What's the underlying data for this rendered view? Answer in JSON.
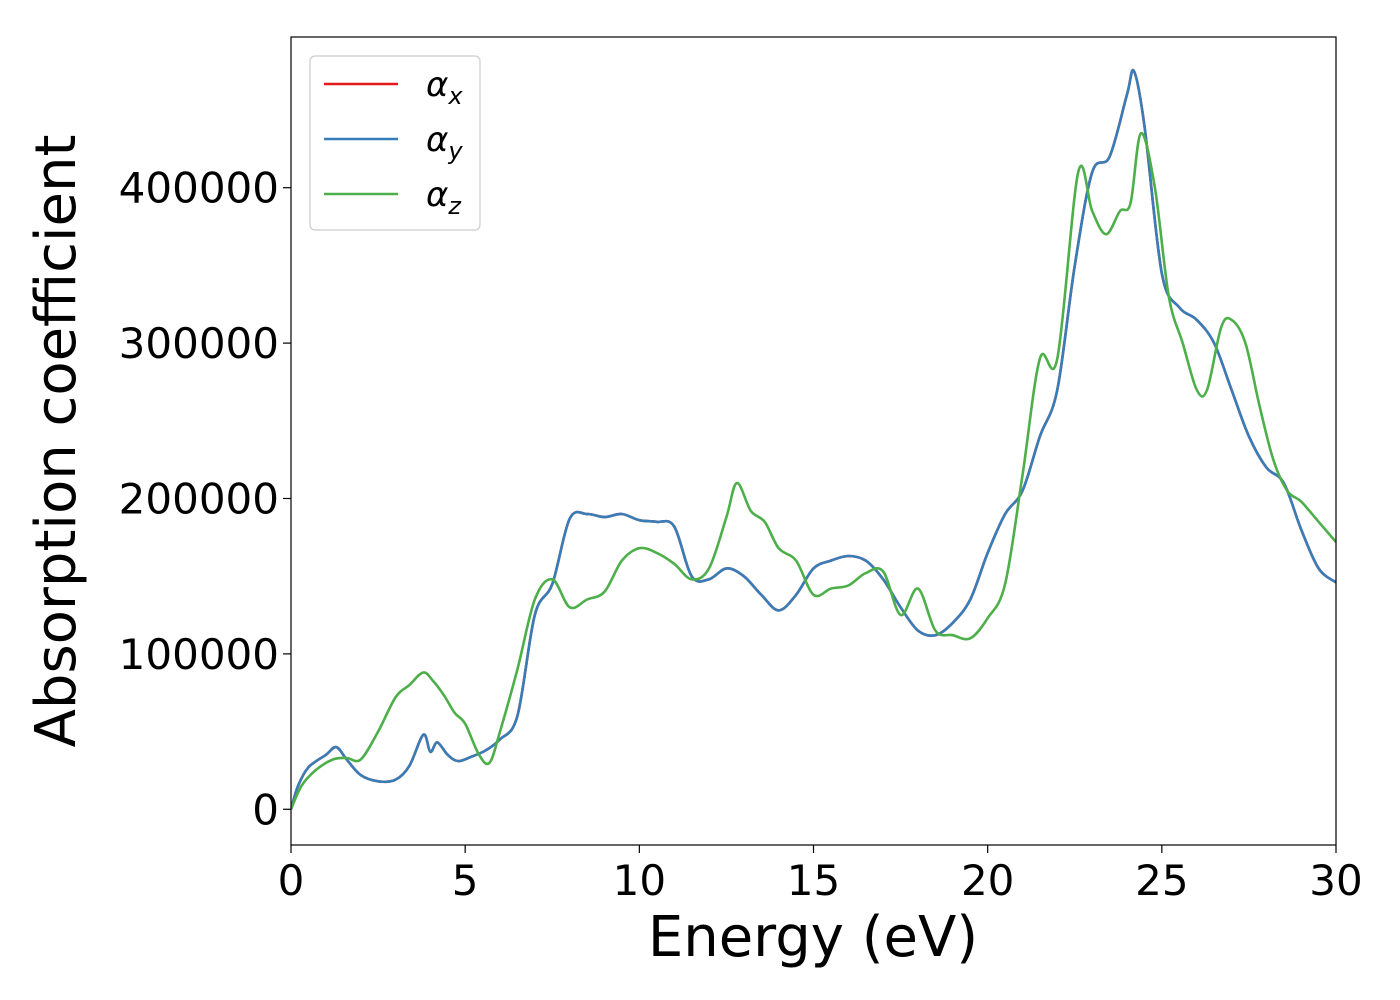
{
  "chart_data": {
    "type": "line",
    "xlabel": "Energy (eV)",
    "ylabel": "Absorption coefficient",
    "xlim": [
      0,
      30
    ],
    "ylim": [
      -23000,
      497000
    ],
    "xticks": [
      0,
      5,
      10,
      15,
      20,
      25,
      30
    ],
    "xtick_labels": [
      "0",
      "5",
      "10",
      "15",
      "20",
      "25",
      "30"
    ],
    "yticks": [
      0,
      100000,
      200000,
      300000,
      400000
    ],
    "ytick_labels": [
      "0",
      "100000",
      "200000",
      "300000",
      "400000"
    ],
    "grid": false,
    "legend_position": "top-left",
    "series": [
      {
        "name": "α_x",
        "symbol": "α",
        "subscript": "x",
        "color": "#e41a1c",
        "x": [
          0,
          0.2,
          0.5,
          1.0,
          1.3,
          1.6,
          2.0,
          2.5,
          3.0,
          3.4,
          3.8,
          4.0,
          4.2,
          4.5,
          4.8,
          5.2,
          5.6,
          6.0,
          6.5,
          7.0,
          7.5,
          8.0,
          8.5,
          9.0,
          9.5,
          10.0,
          10.5,
          11.0,
          11.5,
          12.0,
          12.5,
          13.0,
          13.5,
          14.0,
          14.5,
          15.0,
          15.5,
          16.0,
          16.5,
          17.0,
          17.5,
          18.0,
          18.5,
          19.0,
          19.5,
          20.0,
          20.5,
          21.0,
          21.5,
          22.0,
          22.5,
          23.0,
          23.5,
          24.0,
          24.2,
          24.5,
          25.0,
          25.5,
          26.0,
          26.5,
          27.0,
          27.5,
          28.0,
          28.5,
          29.0,
          29.5,
          30.0
        ],
        "values": [
          0,
          15000,
          27000,
          35000,
          40000,
          32000,
          22000,
          18000,
          19000,
          28000,
          48000,
          37000,
          43000,
          35000,
          31000,
          34000,
          38000,
          45000,
          60000,
          125000,
          145000,
          187000,
          190000,
          188000,
          190000,
          186000,
          185000,
          182000,
          150000,
          148000,
          155000,
          150000,
          138000,
          128000,
          138000,
          155000,
          160000,
          163000,
          160000,
          148000,
          130000,
          115000,
          112000,
          120000,
          135000,
          165000,
          190000,
          205000,
          240000,
          270000,
          350000,
          410000,
          420000,
          460000,
          475000,
          440000,
          345000,
          323000,
          315000,
          300000,
          270000,
          240000,
          220000,
          210000,
          180000,
          155000,
          146000
        ]
      },
      {
        "name": "α_y",
        "symbol": "α",
        "subscript": "y",
        "color": "#377eb8",
        "x": [
          0,
          0.2,
          0.5,
          1.0,
          1.3,
          1.6,
          2.0,
          2.5,
          3.0,
          3.4,
          3.8,
          4.0,
          4.2,
          4.5,
          4.8,
          5.2,
          5.6,
          6.0,
          6.5,
          7.0,
          7.5,
          8.0,
          8.5,
          9.0,
          9.5,
          10.0,
          10.5,
          11.0,
          11.5,
          12.0,
          12.5,
          13.0,
          13.5,
          14.0,
          14.5,
          15.0,
          15.5,
          16.0,
          16.5,
          17.0,
          17.5,
          18.0,
          18.5,
          19.0,
          19.5,
          20.0,
          20.5,
          21.0,
          21.5,
          22.0,
          22.5,
          23.0,
          23.5,
          24.0,
          24.2,
          24.5,
          25.0,
          25.5,
          26.0,
          26.5,
          27.0,
          27.5,
          28.0,
          28.5,
          29.0,
          29.5,
          30.0
        ],
        "values": [
          0,
          15000,
          27000,
          35000,
          40000,
          32000,
          22000,
          18000,
          19000,
          28000,
          48000,
          37000,
          43000,
          35000,
          31000,
          34000,
          38000,
          45000,
          60000,
          125000,
          145000,
          187000,
          190000,
          188000,
          190000,
          186000,
          185000,
          182000,
          150000,
          148000,
          155000,
          150000,
          138000,
          128000,
          138000,
          155000,
          160000,
          163000,
          160000,
          148000,
          130000,
          115000,
          112000,
          120000,
          135000,
          165000,
          190000,
          205000,
          240000,
          270000,
          350000,
          410000,
          420000,
          460000,
          475000,
          440000,
          345000,
          323000,
          315000,
          300000,
          270000,
          240000,
          220000,
          210000,
          180000,
          155000,
          146000
        ]
      },
      {
        "name": "α_z",
        "symbol": "α",
        "subscript": "z",
        "color": "#4daf4a",
        "x": [
          0,
          0.3,
          0.7,
          1.2,
          1.6,
          2.0,
          2.5,
          3.0,
          3.4,
          3.8,
          4.1,
          4.4,
          4.7,
          5.0,
          5.4,
          5.7,
          6.0,
          6.5,
          7.0,
          7.5,
          8.0,
          8.5,
          9.0,
          9.5,
          10.0,
          10.5,
          11.0,
          11.5,
          12.0,
          12.5,
          12.8,
          13.2,
          13.6,
          14.0,
          14.5,
          15.0,
          15.5,
          16.0,
          16.5,
          17.0,
          17.5,
          18.0,
          18.5,
          19.0,
          19.5,
          20.0,
          20.5,
          21.0,
          21.5,
          22.0,
          22.6,
          23.0,
          23.4,
          23.8,
          24.1,
          24.4,
          24.8,
          25.2,
          25.6,
          26.0,
          26.3,
          26.7,
          27.0,
          27.4,
          27.8,
          28.2,
          28.6,
          29.0,
          29.5,
          30.0
        ],
        "values": [
          0,
          15000,
          25000,
          32000,
          33000,
          32000,
          50000,
          72000,
          80000,
          88000,
          82000,
          73000,
          62000,
          55000,
          35000,
          30000,
          50000,
          90000,
          135000,
          148000,
          130000,
          135000,
          140000,
          160000,
          168000,
          165000,
          158000,
          148000,
          155000,
          188000,
          210000,
          192000,
          185000,
          168000,
          160000,
          138000,
          142000,
          144000,
          152000,
          153000,
          125000,
          142000,
          115000,
          112000,
          110000,
          123000,
          145000,
          215000,
          290000,
          290000,
          410000,
          385000,
          370000,
          385000,
          390000,
          435000,
          400000,
          330000,
          300000,
          270000,
          270000,
          310000,
          315000,
          300000,
          260000,
          225000,
          205000,
          198000,
          185000,
          172000
        ]
      }
    ]
  }
}
